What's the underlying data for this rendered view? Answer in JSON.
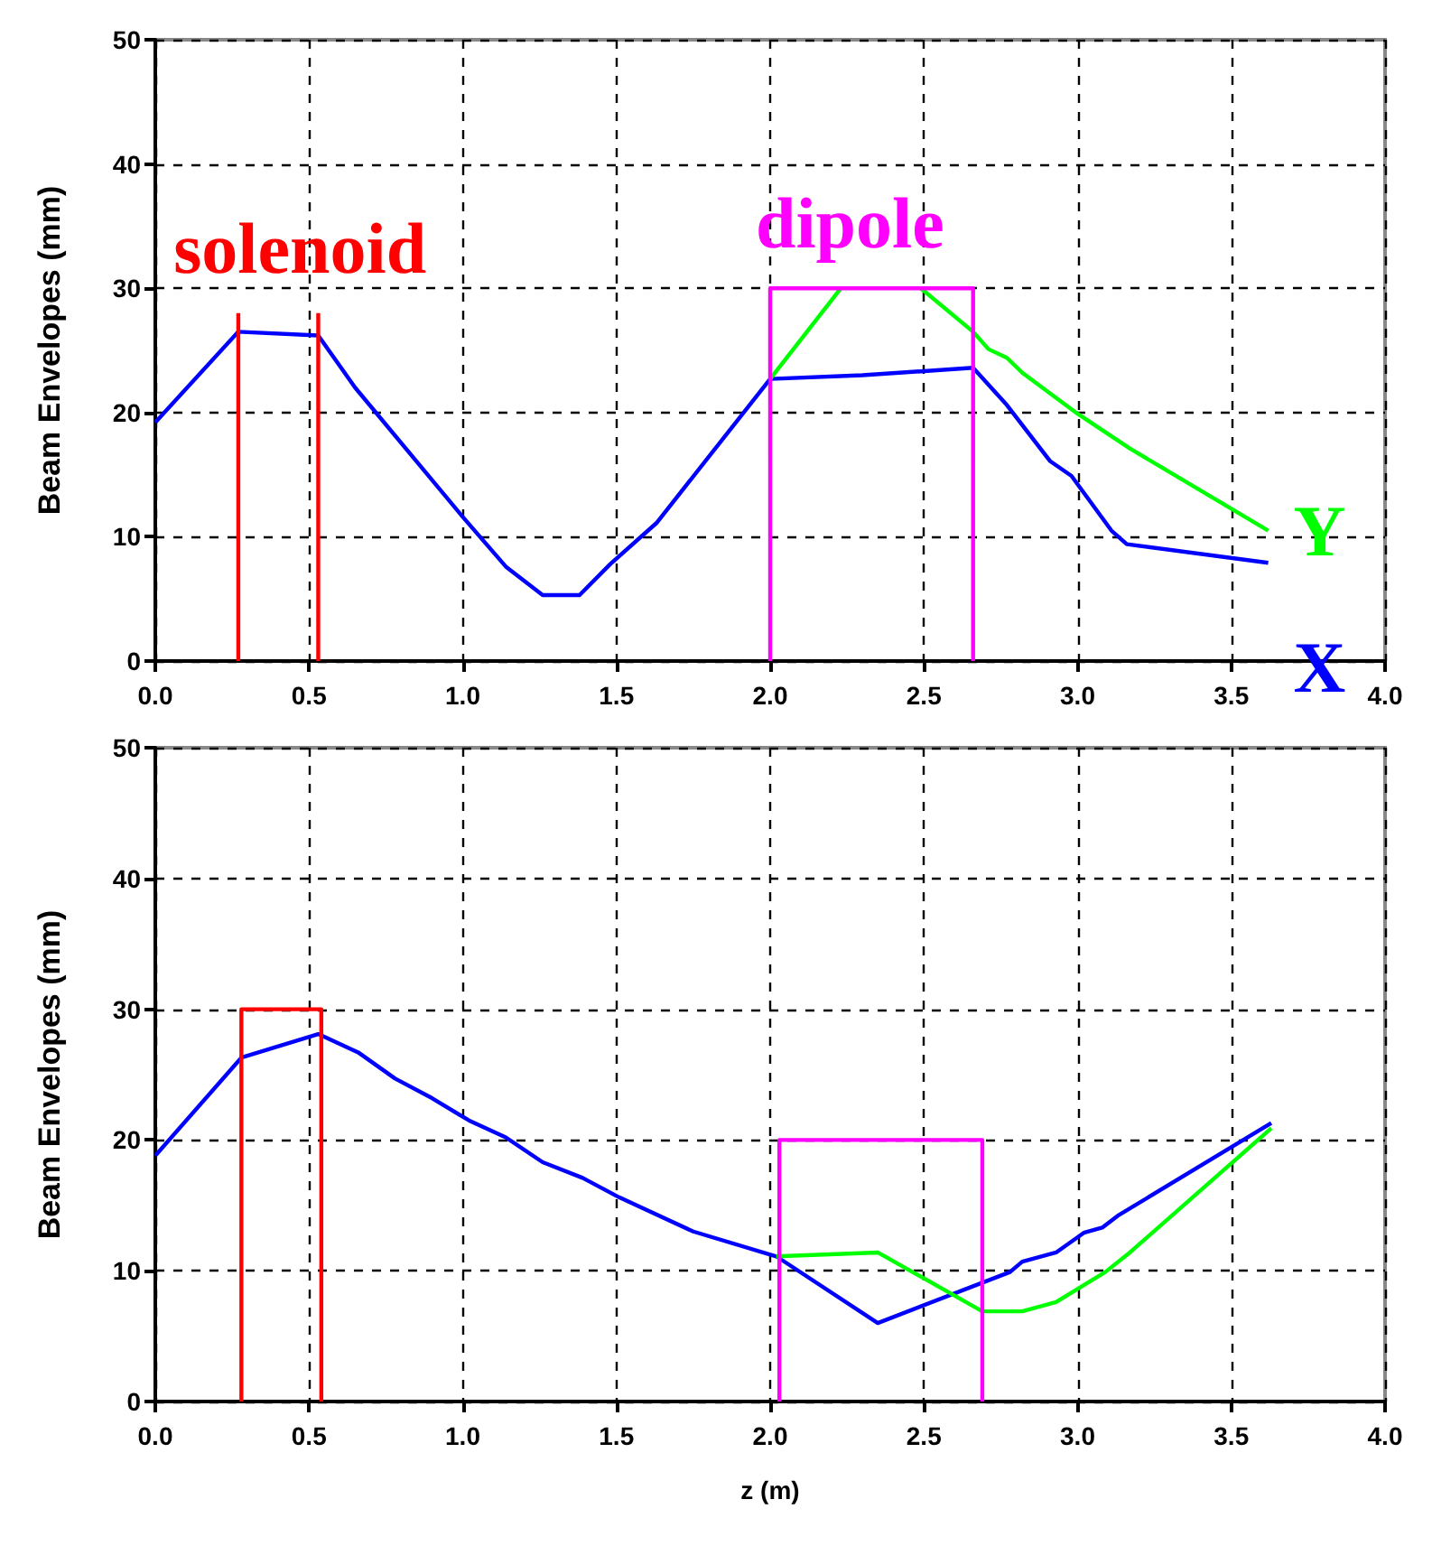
{
  "chart_data": [
    {
      "type": "line",
      "ylabel": "Beam Envelopes (mm)",
      "xlim": [
        0,
        4
      ],
      "xticks": [
        {
          "value": 0,
          "label": "0.0"
        },
        {
          "value": 0.5,
          "label": "0.5"
        },
        {
          "value": 1,
          "label": "1.0"
        },
        {
          "value": 1.5,
          "label": "1.5"
        },
        {
          "value": 2,
          "label": "2.0"
        },
        {
          "value": 2.5,
          "label": "2.5"
        },
        {
          "value": 3,
          "label": "3.0"
        },
        {
          "value": 3.5,
          "label": "3.5"
        },
        {
          "value": 4,
          "label": "4.0"
        }
      ],
      "ylim": [
        0,
        50
      ],
      "yticks": [
        0,
        10,
        20,
        30,
        40,
        50
      ],
      "grid": true,
      "legend": false,
      "marker": "none",
      "line_style": "solid",
      "annotations": [
        "solenoid",
        "dipole"
      ],
      "series": [
        {
          "name": "X",
          "color": "#0000ff",
          "x": [
            0,
            0.27,
            0.53,
            0.65,
            1.0,
            1.14,
            1.26,
            1.38,
            1.48,
            1.63,
            2.0,
            2.3,
            2.66,
            2.77,
            2.91,
            2.98,
            3.11,
            3.16,
            3.62
          ],
          "values": [
            19.2,
            26.5,
            26.2,
            22,
            11.6,
            7.6,
            5.3,
            5.3,
            7.8,
            11.1,
            22.7,
            23,
            23.6,
            20.6,
            16.1,
            14.9,
            10.5,
            9.4,
            7.9
          ]
        },
        {
          "color": "#00ff00",
          "x": [
            2.0,
            2.23
          ],
          "values": [
            22.7,
            30
          ]
        },
        {
          "name": "Y",
          "color": "#00ff00",
          "x": [
            2.49,
            2.66,
            2.71,
            2.77,
            2.82,
            3.0,
            3.17,
            3.62
          ],
          "values": [
            30,
            26.5,
            25.1,
            24.4,
            23.2,
            19.9,
            17.1,
            10.5
          ]
        },
        {
          "color": "#ff0000",
          "x": [
            0.27,
            0.27
          ],
          "values": [
            0,
            28
          ]
        },
        {
          "color": "#ff0000",
          "x": [
            0.53,
            0.53
          ],
          "values": [
            0,
            28
          ]
        },
        {
          "color": "#ff00ff",
          "x": [
            2.0,
            2.0,
            2.66,
            2.66
          ],
          "values": [
            0,
            30,
            30,
            0
          ]
        }
      ]
    },
    {
      "type": "line",
      "ylabel": "Beam Envelopes (mm)",
      "xlabel": "z (m)",
      "xlim": [
        0,
        4
      ],
      "xticks": [
        {
          "value": 0,
          "label": "0.0"
        },
        {
          "value": 0.5,
          "label": "0.5"
        },
        {
          "value": 1,
          "label": "1.0"
        },
        {
          "value": 1.5,
          "label": "1.5"
        },
        {
          "value": 2,
          "label": "2.0"
        },
        {
          "value": 2.5,
          "label": "2.5"
        },
        {
          "value": 3,
          "label": "3.0"
        },
        {
          "value": 3.5,
          "label": "3.5"
        },
        {
          "value": 4,
          "label": "4.0"
        }
      ],
      "ylim": [
        0,
        50
      ],
      "yticks": [
        0,
        10,
        20,
        30,
        40,
        50
      ],
      "grid": true,
      "legend": false,
      "marker": "none",
      "line_style": "solid",
      "series": [
        {
          "color": "#0000ff",
          "x": [
            0,
            0.28,
            0.53,
            0.66,
            0.78,
            0.9,
            1.02,
            1.14,
            1.26,
            1.39,
            1.51,
            1.75,
            2.02,
            2.35,
            2.78,
            2.82,
            2.93,
            3.02,
            3.08,
            3.13,
            3.63
          ],
          "values": [
            18.8,
            26.3,
            28.1,
            26.7,
            24.7,
            23.2,
            21.5,
            20.2,
            18.3,
            17.1,
            15.6,
            13.0,
            11.1,
            6.0,
            9.9,
            10.7,
            11.4,
            12.9,
            13.3,
            14.2,
            21.3
          ]
        },
        {
          "color": "#00ff00",
          "x": [
            2.02,
            2.35,
            2.69,
            2.82,
            2.93,
            3.09,
            3.17,
            3.63
          ],
          "values": [
            11.1,
            11.4,
            6.9,
            6.9,
            7.6,
            9.9,
            11.4,
            20.9
          ]
        },
        {
          "color": "#ff0000",
          "x": [
            0.28,
            0.28,
            0.54,
            0.54
          ],
          "values": [
            0,
            30,
            30,
            0
          ]
        },
        {
          "color": "#ff00ff",
          "x": [
            2.03,
            2.03,
            2.69,
            2.69
          ],
          "values": [
            0,
            20,
            20,
            0
          ]
        }
      ]
    }
  ]
}
